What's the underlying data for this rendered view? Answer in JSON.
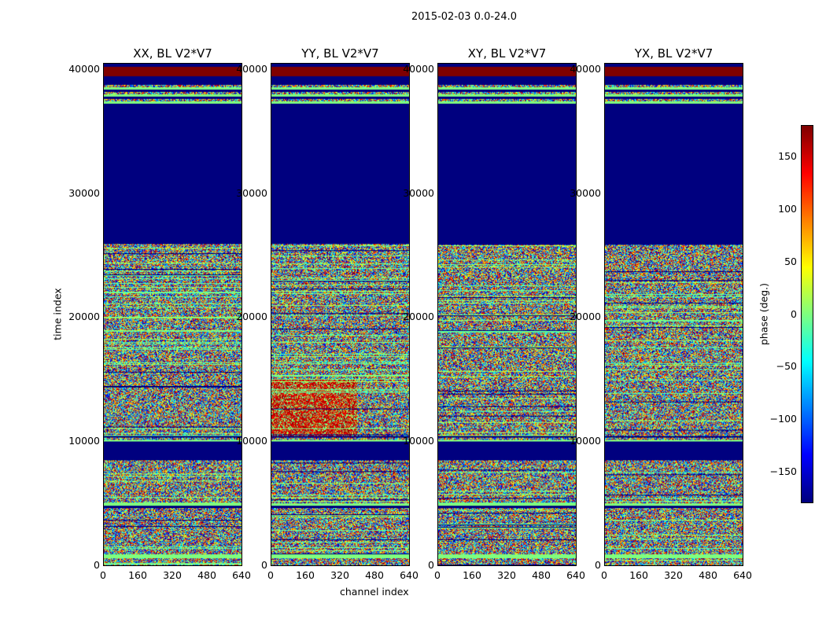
{
  "chart_data": {
    "type": "heatmap",
    "title": "2015-02-03 0.0-24.0",
    "xlabel": "channel index",
    "ylabel": "time index",
    "xlim": [
      0,
      640
    ],
    "ylim": [
      0,
      40500
    ],
    "xticks": [
      "0",
      "160",
      "320",
      "480",
      "640"
    ],
    "yticks": [
      "0",
      "10000",
      "20000",
      "30000",
      "40000"
    ],
    "panels": [
      {
        "title": "XX, BL V2*V7"
      },
      {
        "title": "YY, BL V2*V7"
      },
      {
        "title": "XY, BL V2*V7"
      },
      {
        "title": "YX, BL V2*V7"
      }
    ],
    "bands": [
      {
        "from": 0,
        "to": 600,
        "kind": "noise"
      },
      {
        "from": 600,
        "to": 900,
        "kind": "flat",
        "value": 0
      },
      {
        "from": 900,
        "to": 4500,
        "kind": "noise"
      },
      {
        "from": 4500,
        "to": 5000,
        "kind": "stripes"
      },
      {
        "from": 5000,
        "to": 8500,
        "kind": "noise"
      },
      {
        "from": 8500,
        "to": 10000,
        "kind": "flat",
        "value": -180
      },
      {
        "from": 10000,
        "to": 10500,
        "kind": "stripes"
      },
      {
        "from": 10500,
        "to": 25000,
        "kind": "noise"
      },
      {
        "from": 25000,
        "to": 26000,
        "kind": "noise"
      },
      {
        "from": 26000,
        "to": 37200,
        "kind": "flat",
        "value": -180
      },
      {
        "from": 37200,
        "to": 39000,
        "kind": "stripes"
      },
      {
        "from": 39000,
        "to": 39500,
        "kind": "flat",
        "value": -180
      },
      {
        "from": 39500,
        "to": 40300,
        "kind": "flat",
        "value": 180
      },
      {
        "from": 40300,
        "to": 40500,
        "kind": "flat",
        "value": -180
      }
    ],
    "colorbar": {
      "label": "phase (deg.)",
      "range": [
        -180,
        180
      ],
      "ticks": [
        "150",
        "100",
        "50",
        "0",
        "−50",
        "−100",
        "−150"
      ],
      "tick_values": [
        150,
        100,
        50,
        0,
        -50,
        -100,
        -150
      ],
      "colormap": "jet"
    }
  }
}
